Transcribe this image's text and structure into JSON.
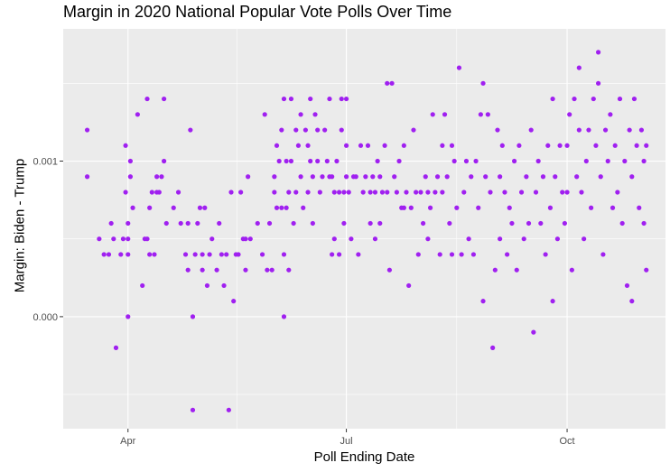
{
  "chart_data": {
    "type": "scatter",
    "title": "Margin in 2020 National Popular Vote Polls Over Time",
    "xlabel": "Poll Ending Date",
    "ylabel": "Margin: Biden - Trump",
    "x_ticks": [
      {
        "date": "2020-04-01",
        "label": "Apr"
      },
      {
        "date": "2020-07-01",
        "label": "Jul"
      },
      {
        "date": "2020-10-01",
        "label": "Oct"
      }
    ],
    "y_ticks": [
      {
        "value": 0.0,
        "label": "0.000"
      },
      {
        "value": 0.001,
        "label": "0.001"
      }
    ],
    "xlim": [
      "2020-03-05",
      "2020-11-11"
    ],
    "ylim": [
      -0.00072,
      0.00185
    ],
    "point_color": "#a020f0",
    "panel_background": "#ebebeb",
    "grid": true,
    "points": [
      [
        "2020-03-15",
        0.0012
      ],
      [
        "2020-03-15",
        0.0009
      ],
      [
        "2020-03-20",
        0.0005
      ],
      [
        "2020-03-22",
        0.0004
      ],
      [
        "2020-03-24",
        0.0004
      ],
      [
        "2020-03-25",
        0.0006
      ],
      [
        "2020-03-26",
        0.0005
      ],
      [
        "2020-03-27",
        -0.0002
      ],
      [
        "2020-03-29",
        0.0004
      ],
      [
        "2020-03-30",
        0.0005
      ],
      [
        "2020-03-31",
        0.0008
      ],
      [
        "2020-03-31",
        0.0011
      ],
      [
        "2020-04-01",
        0.0006
      ],
      [
        "2020-04-01",
        0.0005
      ],
      [
        "2020-04-01",
        0.0004
      ],
      [
        "2020-04-01",
        0.0
      ],
      [
        "2020-04-02",
        0.001
      ],
      [
        "2020-04-02",
        0.0009
      ],
      [
        "2020-04-03",
        0.0007
      ],
      [
        "2020-04-05",
        0.0013
      ],
      [
        "2020-04-07",
        0.0002
      ],
      [
        "2020-04-08",
        0.0005
      ],
      [
        "2020-04-09",
        0.0014
      ],
      [
        "2020-04-09",
        0.0005
      ],
      [
        "2020-04-10",
        0.0004
      ],
      [
        "2020-04-10",
        0.0007
      ],
      [
        "2020-04-11",
        0.0008
      ],
      [
        "2020-04-12",
        0.0004
      ],
      [
        "2020-04-13",
        0.0009
      ],
      [
        "2020-04-13",
        0.0008
      ],
      [
        "2020-04-14",
        0.0008
      ],
      [
        "2020-04-15",
        0.0009
      ],
      [
        "2020-04-16",
        0.0014
      ],
      [
        "2020-04-16",
        0.001
      ],
      [
        "2020-04-17",
        0.0006
      ],
      [
        "2020-04-20",
        0.0007
      ],
      [
        "2020-04-22",
        0.0008
      ],
      [
        "2020-04-23",
        0.0006
      ],
      [
        "2020-04-25",
        0.0004
      ],
      [
        "2020-04-26",
        0.0003
      ],
      [
        "2020-04-26",
        0.0006
      ],
      [
        "2020-04-27",
        0.0012
      ],
      [
        "2020-04-28",
        0.0
      ],
      [
        "2020-04-28",
        -0.0006
      ],
      [
        "2020-04-29",
        0.0004
      ],
      [
        "2020-04-30",
        0.0006
      ],
      [
        "2020-05-01",
        0.0007
      ],
      [
        "2020-05-02",
        0.0003
      ],
      [
        "2020-05-02",
        0.0004
      ],
      [
        "2020-05-03",
        0.0007
      ],
      [
        "2020-05-04",
        0.0002
      ],
      [
        "2020-05-05",
        0.0004
      ],
      [
        "2020-05-06",
        0.0005
      ],
      [
        "2020-05-08",
        0.0003
      ],
      [
        "2020-05-09",
        0.0006
      ],
      [
        "2020-05-10",
        0.0004
      ],
      [
        "2020-05-11",
        0.0002
      ],
      [
        "2020-05-12",
        0.0004
      ],
      [
        "2020-05-13",
        -0.0006
      ],
      [
        "2020-05-14",
        0.0008
      ],
      [
        "2020-05-15",
        0.0001
      ],
      [
        "2020-05-16",
        0.0004
      ],
      [
        "2020-05-17",
        0.0004
      ],
      [
        "2020-05-18",
        0.0008
      ],
      [
        "2020-05-19",
        0.0005
      ],
      [
        "2020-05-20",
        0.0003
      ],
      [
        "2020-05-20",
        0.0005
      ],
      [
        "2020-05-21",
        0.0009
      ],
      [
        "2020-05-22",
        0.0005
      ],
      [
        "2020-05-25",
        0.0006
      ],
      [
        "2020-05-27",
        0.0004
      ],
      [
        "2020-05-28",
        0.0013
      ],
      [
        "2020-05-29",
        0.0003
      ],
      [
        "2020-05-30",
        0.0006
      ],
      [
        "2020-05-31",
        0.0003
      ],
      [
        "2020-06-01",
        0.0008
      ],
      [
        "2020-06-01",
        0.0009
      ],
      [
        "2020-06-02",
        0.0011
      ],
      [
        "2020-06-02",
        0.0007
      ],
      [
        "2020-06-03",
        0.001
      ],
      [
        "2020-06-04",
        0.0007
      ],
      [
        "2020-06-04",
        0.0012
      ],
      [
        "2020-06-05",
        0.0014
      ],
      [
        "2020-06-05",
        0.0004
      ],
      [
        "2020-06-05",
        0.0
      ],
      [
        "2020-06-06",
        0.001
      ],
      [
        "2020-06-06",
        0.0007
      ],
      [
        "2020-06-07",
        0.0008
      ],
      [
        "2020-06-07",
        0.0003
      ],
      [
        "2020-06-08",
        0.0014
      ],
      [
        "2020-06-08",
        0.001
      ],
      [
        "2020-06-09",
        0.0006
      ],
      [
        "2020-06-10",
        0.0008
      ],
      [
        "2020-06-10",
        0.0012
      ],
      [
        "2020-06-11",
        0.0011
      ],
      [
        "2020-06-12",
        0.0013
      ],
      [
        "2020-06-12",
        0.0009
      ],
      [
        "2020-06-13",
        0.0007
      ],
      [
        "2020-06-14",
        0.0012
      ],
      [
        "2020-06-15",
        0.0008
      ],
      [
        "2020-06-15",
        0.0011
      ],
      [
        "2020-06-16",
        0.0014
      ],
      [
        "2020-06-16",
        0.001
      ],
      [
        "2020-06-17",
        0.0006
      ],
      [
        "2020-06-17",
        0.0009
      ],
      [
        "2020-06-18",
        0.0013
      ],
      [
        "2020-06-19",
        0.0012
      ],
      [
        "2020-06-19",
        0.001
      ],
      [
        "2020-06-20",
        0.0008
      ],
      [
        "2020-06-21",
        0.0009
      ],
      [
        "2020-06-22",
        0.0012
      ],
      [
        "2020-06-23",
        0.001
      ],
      [
        "2020-06-24",
        0.0014
      ],
      [
        "2020-06-24",
        0.0009
      ],
      [
        "2020-06-25",
        0.0004
      ],
      [
        "2020-06-25",
        0.0009
      ],
      [
        "2020-06-26",
        0.0008
      ],
      [
        "2020-06-26",
        0.0005
      ],
      [
        "2020-06-27",
        0.001
      ],
      [
        "2020-06-28",
        0.0008
      ],
      [
        "2020-06-28",
        0.0004
      ],
      [
        "2020-06-29",
        0.0014
      ],
      [
        "2020-06-29",
        0.0012
      ],
      [
        "2020-06-30",
        0.0008
      ],
      [
        "2020-06-30",
        0.0006
      ],
      [
        "2020-07-01",
        0.0009
      ],
      [
        "2020-07-01",
        0.0011
      ],
      [
        "2020-07-01",
        0.0014
      ],
      [
        "2020-07-02",
        0.0008
      ],
      [
        "2020-07-03",
        0.0005
      ],
      [
        "2020-07-04",
        0.0009
      ],
      [
        "2020-07-05",
        0.0009
      ],
      [
        "2020-07-06",
        0.0004
      ],
      [
        "2020-07-07",
        0.0011
      ],
      [
        "2020-07-08",
        0.0008
      ],
      [
        "2020-07-09",
        0.0009
      ],
      [
        "2020-07-10",
        0.0011
      ],
      [
        "2020-07-11",
        0.0008
      ],
      [
        "2020-07-11",
        0.0006
      ],
      [
        "2020-07-12",
        0.0009
      ],
      [
        "2020-07-13",
        0.0008
      ],
      [
        "2020-07-13",
        0.0005
      ],
      [
        "2020-07-14",
        0.001
      ],
      [
        "2020-07-15",
        0.0006
      ],
      [
        "2020-07-15",
        0.0009
      ],
      [
        "2020-07-16",
        0.0008
      ],
      [
        "2020-07-17",
        0.0011
      ],
      [
        "2020-07-18",
        0.0015
      ],
      [
        "2020-07-18",
        0.0008
      ],
      [
        "2020-07-19",
        0.0003
      ],
      [
        "2020-07-20",
        0.0015
      ],
      [
        "2020-07-21",
        0.0009
      ],
      [
        "2020-07-22",
        0.0008
      ],
      [
        "2020-07-23",
        0.001
      ],
      [
        "2020-07-24",
        0.0007
      ],
      [
        "2020-07-25",
        0.0011
      ],
      [
        "2020-07-25",
        0.0007
      ],
      [
        "2020-07-26",
        0.0008
      ],
      [
        "2020-07-27",
        0.0002
      ],
      [
        "2020-07-28",
        0.0007
      ],
      [
        "2020-07-29",
        0.0012
      ],
      [
        "2020-07-30",
        0.0008
      ],
      [
        "2020-07-31",
        0.0004
      ],
      [
        "2020-08-01",
        0.0008
      ],
      [
        "2020-08-02",
        0.0006
      ],
      [
        "2020-08-03",
        0.0009
      ],
      [
        "2020-08-04",
        0.0005
      ],
      [
        "2020-08-04",
        0.0008
      ],
      [
        "2020-08-05",
        0.0007
      ],
      [
        "2020-08-06",
        0.0013
      ],
      [
        "2020-08-07",
        0.0008
      ],
      [
        "2020-08-08",
        0.0009
      ],
      [
        "2020-08-09",
        0.0004
      ],
      [
        "2020-08-10",
        0.0011
      ],
      [
        "2020-08-10",
        0.0008
      ],
      [
        "2020-08-11",
        0.0013
      ],
      [
        "2020-08-12",
        0.0009
      ],
      [
        "2020-08-13",
        0.0006
      ],
      [
        "2020-08-14",
        0.0011
      ],
      [
        "2020-08-14",
        0.0004
      ],
      [
        "2020-08-15",
        0.001
      ],
      [
        "2020-08-16",
        0.0007
      ],
      [
        "2020-08-17",
        0.0016
      ],
      [
        "2020-08-18",
        0.0004
      ],
      [
        "2020-08-19",
        0.0008
      ],
      [
        "2020-08-20",
        0.001
      ],
      [
        "2020-08-21",
        0.0005
      ],
      [
        "2020-08-22",
        0.0009
      ],
      [
        "2020-08-23",
        0.0004
      ],
      [
        "2020-08-24",
        0.001
      ],
      [
        "2020-08-25",
        0.0007
      ],
      [
        "2020-08-26",
        0.0013
      ],
      [
        "2020-08-27",
        0.0015
      ],
      [
        "2020-08-27",
        0.0001
      ],
      [
        "2020-08-28",
        0.0009
      ],
      [
        "2020-08-29",
        0.0013
      ],
      [
        "2020-08-30",
        0.0008
      ],
      [
        "2020-08-31",
        -0.0002
      ],
      [
        "2020-09-01",
        0.0003
      ],
      [
        "2020-09-02",
        0.0012
      ],
      [
        "2020-09-03",
        0.0005
      ],
      [
        "2020-09-03",
        0.0009
      ],
      [
        "2020-09-04",
        0.0011
      ],
      [
        "2020-09-05",
        0.0008
      ],
      [
        "2020-09-06",
        0.0004
      ],
      [
        "2020-09-07",
        0.0007
      ],
      [
        "2020-09-08",
        0.0006
      ],
      [
        "2020-09-09",
        0.001
      ],
      [
        "2020-09-10",
        0.0003
      ],
      [
        "2020-09-11",
        0.0011
      ],
      [
        "2020-09-12",
        0.0008
      ],
      [
        "2020-09-13",
        0.0005
      ],
      [
        "2020-09-14",
        0.0009
      ],
      [
        "2020-09-15",
        0.0006
      ],
      [
        "2020-09-16",
        0.0012
      ],
      [
        "2020-09-17",
        -0.0001
      ],
      [
        "2020-09-18",
        0.0008
      ],
      [
        "2020-09-19",
        0.001
      ],
      [
        "2020-09-20",
        0.0006
      ],
      [
        "2020-09-21",
        0.0009
      ],
      [
        "2020-09-22",
        0.0004
      ],
      [
        "2020-09-23",
        0.0011
      ],
      [
        "2020-09-24",
        0.0007
      ],
      [
        "2020-09-25",
        0.0014
      ],
      [
        "2020-09-25",
        0.0001
      ],
      [
        "2020-09-26",
        0.0009
      ],
      [
        "2020-09-27",
        0.0005
      ],
      [
        "2020-09-28",
        0.0011
      ],
      [
        "2020-09-29",
        0.0008
      ],
      [
        "2020-09-30",
        0.0006
      ],
      [
        "2020-10-01",
        0.0011
      ],
      [
        "2020-10-01",
        0.0008
      ],
      [
        "2020-10-02",
        0.0013
      ],
      [
        "2020-10-03",
        0.0003
      ],
      [
        "2020-10-04",
        0.0014
      ],
      [
        "2020-10-05",
        0.0009
      ],
      [
        "2020-10-06",
        0.0016
      ],
      [
        "2020-10-06",
        0.0012
      ],
      [
        "2020-10-07",
        0.0008
      ],
      [
        "2020-10-08",
        0.0005
      ],
      [
        "2020-10-09",
        0.001
      ],
      [
        "2020-10-10",
        0.0012
      ],
      [
        "2020-10-11",
        0.0007
      ],
      [
        "2020-10-12",
        0.0014
      ],
      [
        "2020-10-13",
        0.0011
      ],
      [
        "2020-10-14",
        0.0017
      ],
      [
        "2020-10-14",
        0.0015
      ],
      [
        "2020-10-15",
        0.0009
      ],
      [
        "2020-10-16",
        0.0004
      ],
      [
        "2020-10-17",
        0.0012
      ],
      [
        "2020-10-18",
        0.001
      ],
      [
        "2020-10-19",
        0.0013
      ],
      [
        "2020-10-20",
        0.0007
      ],
      [
        "2020-10-21",
        0.0011
      ],
      [
        "2020-10-22",
        0.0008
      ],
      [
        "2020-10-23",
        0.0014
      ],
      [
        "2020-10-24",
        0.0006
      ],
      [
        "2020-10-25",
        0.001
      ],
      [
        "2020-10-26",
        0.0002
      ],
      [
        "2020-10-27",
        0.0012
      ],
      [
        "2020-10-28",
        0.0001
      ],
      [
        "2020-10-28",
        0.0009
      ],
      [
        "2020-10-29",
        0.0014
      ],
      [
        "2020-10-30",
        0.0011
      ],
      [
        "2020-10-31",
        0.0007
      ],
      [
        "2020-11-01",
        0.0012
      ],
      [
        "2020-11-02",
        0.001
      ],
      [
        "2020-11-02",
        0.0006
      ],
      [
        "2020-11-03",
        0.0011
      ],
      [
        "2020-11-03",
        0.0003
      ]
    ]
  }
}
